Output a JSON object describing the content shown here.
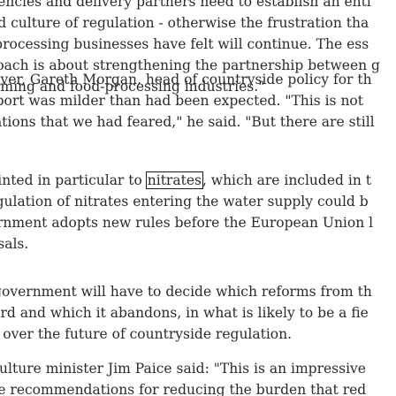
{
  "article": {
    "paragraphs": [
      {
        "lines": [
          "agencies and delivery partners need to establish an entl",
          "and culture of regulation - otherwise the frustration tha",
          "d-processing businesses have felt will continue. The ess",
          "proach is about strengthening the partnership between g",
          "farming and food-processing industries.\""
        ]
      },
      {
        "lines": [
          "wever, Gareth Morgan, head of countryside policy for th",
          "report was milder than had been expected. \"This is not",
          "ulations that we had feared,\" he said. \"But there are still"
        ]
      },
      {
        "line1_before": "pointed in particular to ",
        "line1_highlight": "nitrates",
        "line1_after": ", which are included in t",
        "lines": [
          "regulation of nitrates entering the water supply could b",
          "vernment adopts new rules before the European Union l",
          "posals."
        ]
      },
      {
        "lines": [
          "e government will have to decide which reforms from th",
          "ward and which it abandons, in what is likely to be a fie",
          "tle over the future of countryside regulation."
        ]
      },
      {
        "lines": [
          "riculture minister Jim Paice said: \"This is an impressive",
          "one recommendations for reducing the burden that red"
        ]
      }
    ]
  }
}
